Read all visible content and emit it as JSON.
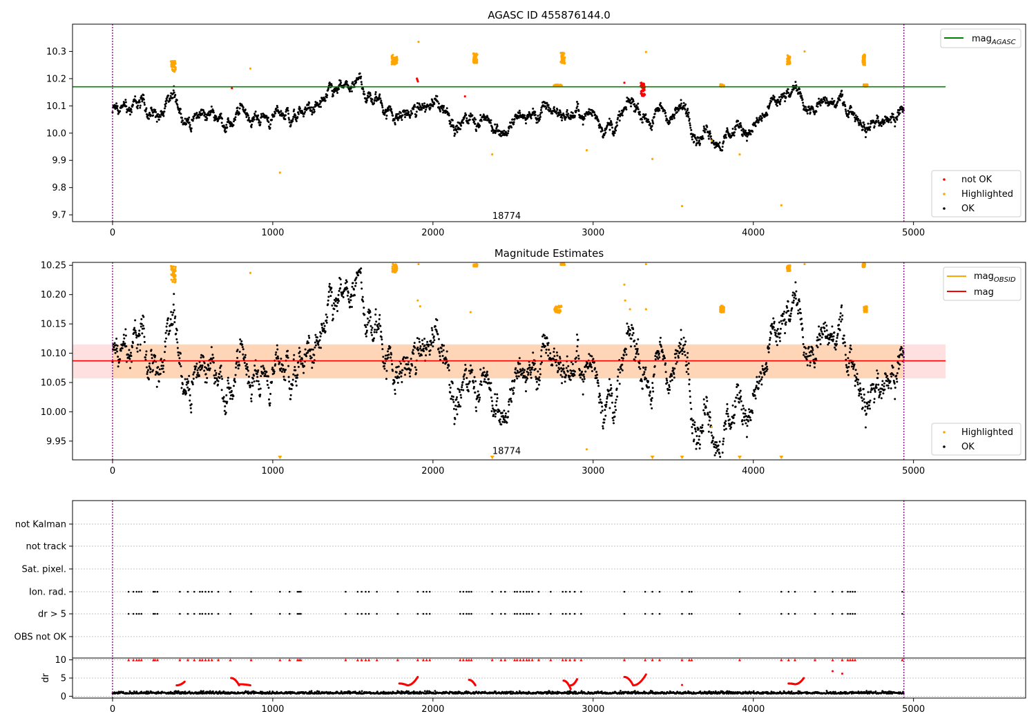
{
  "chart_data": [
    {
      "type": "scatter",
      "title": "AGASC ID 455876144.0",
      "xlim": [
        -250,
        5700
      ],
      "ylim": [
        9.675,
        10.4
      ],
      "xticks": [
        0,
        1000,
        2000,
        3000,
        4000,
        5000
      ],
      "yticks": [
        9.7,
        9.8,
        9.9,
        10.0,
        10.1,
        10.2,
        10.3
      ],
      "ytick_labels": [
        "9.7",
        "9.8",
        "9.9",
        "10.0",
        "10.1",
        "10.2",
        "10.3"
      ],
      "vlines": [
        0,
        4940
      ],
      "hlines": [
        {
          "name": "mag_AGASC",
          "value": 10.17,
          "x": [
            -250,
            5200
          ],
          "color": "#008000"
        }
      ],
      "text": {
        "label": "18774",
        "x": 2460,
        "y": 9.695
      },
      "legend_top": {
        "placement": "upper right",
        "entries": [
          {
            "label": "mag",
            "sub": "AGASC",
            "color": "#008000"
          }
        ]
      },
      "legend_bottom": {
        "placement": "lower right",
        "entries": [
          {
            "label": "not OK",
            "color": "#ff0000"
          },
          {
            "label": "Highlighted",
            "color": "#ffa500"
          },
          {
            "label": "OK",
            "color": "#000000"
          }
        ]
      },
      "series": [
        {
          "name": "OK",
          "color": "#000000",
          "base": 10.075,
          "noise": 0.018
        },
        {
          "name": "Highlighted",
          "color": "#ffa500",
          "points": [
            [
              1045,
              9.855
            ],
            [
              2370,
              9.922
            ],
            [
              2960,
              9.937
            ],
            [
              3370,
              9.905
            ],
            [
              3555,
              9.732
            ],
            [
              3740,
              9.972
            ],
            [
              3915,
              9.922
            ],
            [
              4175,
              9.735
            ],
            [
              860,
              10.237
            ],
            [
              1910,
              10.335
            ],
            [
              3330,
              10.298
            ],
            [
              4320,
              10.3
            ]
          ],
          "clusters": [
            {
              "x": 380,
              "y": 10.245,
              "w": 30,
              "h": 0.04
            },
            {
              "x": 1760,
              "y": 10.27,
              "w": 35,
              "h": 0.035
            },
            {
              "x": 2265,
              "y": 10.275,
              "w": 25,
              "h": 0.035
            },
            {
              "x": 2810,
              "y": 10.275,
              "w": 25,
              "h": 0.04
            },
            {
              "x": 4220,
              "y": 10.27,
              "w": 20,
              "h": 0.035
            },
            {
              "x": 4690,
              "y": 10.27,
              "w": 15,
              "h": 0.04
            },
            {
              "x": 2780,
              "y": 10.175,
              "w": 50,
              "h": 0.006
            },
            {
              "x": 3805,
              "y": 10.175,
              "w": 25,
              "h": 0.008
            },
            {
              "x": 4700,
              "y": 10.175,
              "w": 25,
              "h": 0.008
            }
          ]
        },
        {
          "name": "not OK",
          "color": "#ff0000",
          "points": [
            [
              1900,
              10.2
            ],
            [
              1903,
              10.195
            ],
            [
              1906,
              10.19
            ],
            [
              745,
              10.165
            ],
            [
              2200,
              10.135
            ],
            [
              3195,
              10.185
            ]
          ],
          "clusters": [
            {
              "x": 3310,
              "y": 10.16,
              "w": 25,
              "h": 0.05
            }
          ]
        }
      ]
    },
    {
      "type": "scatter",
      "title": "Magnitude Estimates",
      "xlim": [
        -250,
        5700
      ],
      "ylim": [
        9.918,
        10.255
      ],
      "xticks": [
        0,
        1000,
        2000,
        3000,
        4000,
        5000
      ],
      "yticks": [
        9.95,
        10.0,
        10.05,
        10.1,
        10.15,
        10.2,
        10.25
      ],
      "ytick_labels": [
        "9.95",
        "10.00",
        "10.05",
        "10.10",
        "10.15",
        "10.20",
        "10.25"
      ],
      "vlines": [
        0,
        4940
      ],
      "band": {
        "x": [
          -250,
          5200
        ],
        "y": [
          10.057,
          10.115
        ]
      },
      "hlines": [
        {
          "name": "mag",
          "value": 10.087,
          "x": [
            -250,
            5200
          ],
          "color": "#ff0000"
        }
      ],
      "text": {
        "label": "18774",
        "x": 2460,
        "y": 9.933
      },
      "legend_top": {
        "placement": "upper right",
        "entries": [
          {
            "label": "mag",
            "sub": "OBSID",
            "color": "#ffa500"
          },
          {
            "label": "mag",
            "sub": "",
            "color": "#ff0000"
          }
        ]
      },
      "legend_bottom": {
        "placement": "lower right",
        "entries": [
          {
            "label": "Highlighted",
            "color": "#ffa500"
          },
          {
            "label": "OK",
            "color": "#000000"
          }
        ]
      },
      "series": [
        {
          "name": "OK",
          "color": "#000000",
          "base": 10.083,
          "noise": 0.022
        },
        {
          "name": "Highlighted",
          "color": "#ffa500",
          "points": [
            [
              860,
              10.237
            ],
            [
              1905,
              10.19
            ],
            [
              1920,
              10.18
            ],
            [
              2235,
              10.17
            ],
            [
              3195,
              10.217
            ],
            [
              3200,
              10.19
            ],
            [
              3230,
              10.175
            ],
            [
              3330,
              10.175
            ],
            [
              3740,
              9.974
            ],
            [
              2960,
              9.936
            ],
            [
              1910,
              10.252
            ],
            [
              4320,
              10.252
            ],
            [
              3330,
              10.252
            ]
          ],
          "clusters": [
            {
              "x": 380,
              "y": 10.235,
              "w": 30,
              "h": 0.03
            },
            {
              "x": 1760,
              "y": 10.245,
              "w": 35,
              "h": 0.015
            },
            {
              "x": 2265,
              "y": 10.25,
              "w": 25,
              "h": 0.004
            },
            {
              "x": 2810,
              "y": 10.252,
              "w": 25,
              "h": 0.003
            },
            {
              "x": 2780,
              "y": 10.175,
              "w": 45,
              "h": 0.012
            },
            {
              "x": 3805,
              "y": 10.175,
              "w": 25,
              "h": 0.012
            },
            {
              "x": 4220,
              "y": 10.245,
              "w": 20,
              "h": 0.01
            },
            {
              "x": 4690,
              "y": 10.25,
              "w": 15,
              "h": 0.006
            },
            {
              "x": 4700,
              "y": 10.175,
              "w": 20,
              "h": 0.01
            }
          ],
          "markers_down": [
            1045,
            2370,
            3370,
            3555,
            3915,
            4175
          ]
        }
      ]
    },
    {
      "type": "scatter",
      "title": "",
      "xlim": [
        -250,
        5700
      ],
      "vlines": [
        0,
        4940
      ],
      "flag_rows": [
        "not Kalman",
        "not track",
        "Sat. pixel.",
        "Ion. rad.",
        "dr > 5",
        "OBS not OK"
      ],
      "flag_row_ion": 3,
      "flag_row_dr": 4,
      "flag_times": [
        100,
        130,
        150,
        165,
        180,
        255,
        265,
        280,
        420,
        470,
        510,
        545,
        560,
        580,
        600,
        620,
        660,
        735,
        865,
        1045,
        1105,
        1155,
        1165,
        1175,
        1455,
        1530,
        1555,
        1580,
        1600,
        1650,
        1780,
        1905,
        1940,
        1960,
        1980,
        2170,
        2190,
        2210,
        2225,
        2240,
        2370,
        2425,
        2450,
        2510,
        2525,
        2545,
        2565,
        2585,
        2600,
        2620,
        2660,
        2735,
        2810,
        2830,
        2855,
        2885,
        2925,
        3195,
        3325,
        3370,
        3415,
        3555,
        3600,
        3615,
        3915,
        4175,
        4220,
        4260,
        4385,
        4495,
        4555,
        4590,
        4605,
        4620,
        4635,
        4930
      ],
      "dr": {
        "ylabel": "dr",
        "ylim": [
          -0.5,
          10.5
        ],
        "yticks": [
          0,
          5,
          10
        ],
        "ytick_labels": [
          "0",
          "5",
          "10"
        ],
        "xticks": [
          0,
          1000,
          2000,
          3000,
          4000,
          5000
        ],
        "xtick_labels": [
          "0",
          "1000",
          "2000",
          "3000",
          "4000",
          "5000"
        ],
        "base": 0.7,
        "capped_value": 10,
        "red_arcs": [
          {
            "x0": 400,
            "x1": 450,
            "y0": 3.0,
            "y1": 4.0
          },
          {
            "x0": 740,
            "x1": 790,
            "y0": 5.0,
            "y1": 3.0
          },
          {
            "x0": 790,
            "x1": 860,
            "y0": 3.3,
            "y1": 3.0
          },
          {
            "x0": 1790,
            "x1": 1840,
            "y0": 3.5,
            "y1": 3.0
          },
          {
            "x0": 1840,
            "x1": 1905,
            "y0": 3.0,
            "y1": 5.3
          },
          {
            "x0": 2225,
            "x1": 2265,
            "y0": 4.5,
            "y1": 3.0
          },
          {
            "x0": 2815,
            "x1": 2860,
            "y0": 4.3,
            "y1": 2.0
          },
          {
            "x0": 2860,
            "x1": 2900,
            "y0": 3.0,
            "y1": 4.7
          },
          {
            "x0": 3195,
            "x1": 3250,
            "y0": 5.3,
            "y1": 3.0
          },
          {
            "x0": 3250,
            "x1": 3330,
            "y0": 3.0,
            "y1": 6.0
          },
          {
            "x0": 4220,
            "x1": 4260,
            "y0": 3.5,
            "y1": 3.3
          },
          {
            "x0": 4260,
            "x1": 4315,
            "y0": 3.3,
            "y1": 5.0
          }
        ],
        "red_points": [
          [
            4495,
            6.9
          ],
          [
            4555,
            6.2
          ],
          [
            3555,
            3.1
          ]
        ]
      }
    }
  ]
}
